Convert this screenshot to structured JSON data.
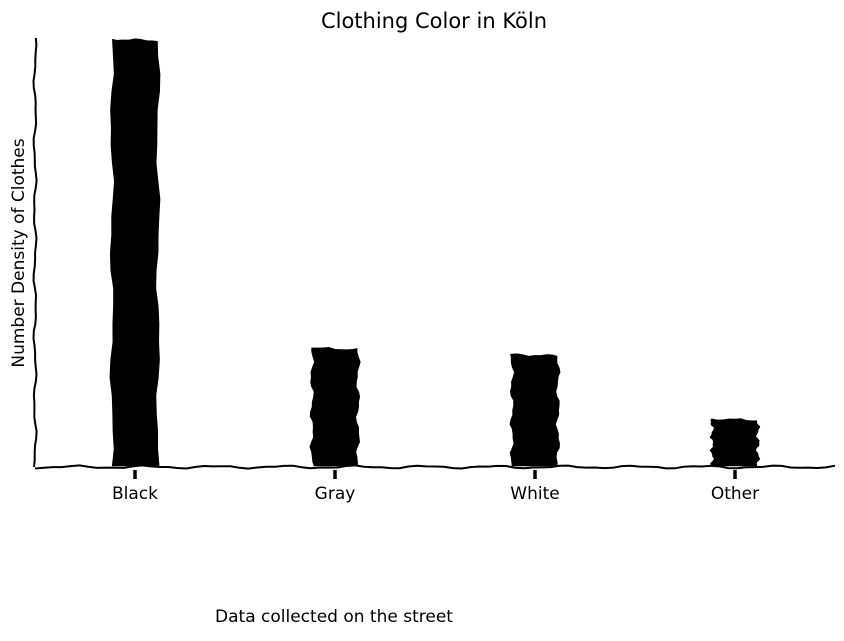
{
  "chart_data": {
    "type": "bar",
    "title": "Clothing Color in Köln",
    "xlabel": "",
    "ylabel": "Number Density of Clothes",
    "categories": [
      "Black",
      "Gray",
      "White",
      "Other"
    ],
    "values": [
      100,
      28,
      26.5,
      11.5
    ],
    "ylim": [
      0,
      100
    ],
    "grid": false,
    "legend": "none",
    "bar_color": "#000000"
  },
  "footer": {
    "caption": "Data collected on the street"
  }
}
